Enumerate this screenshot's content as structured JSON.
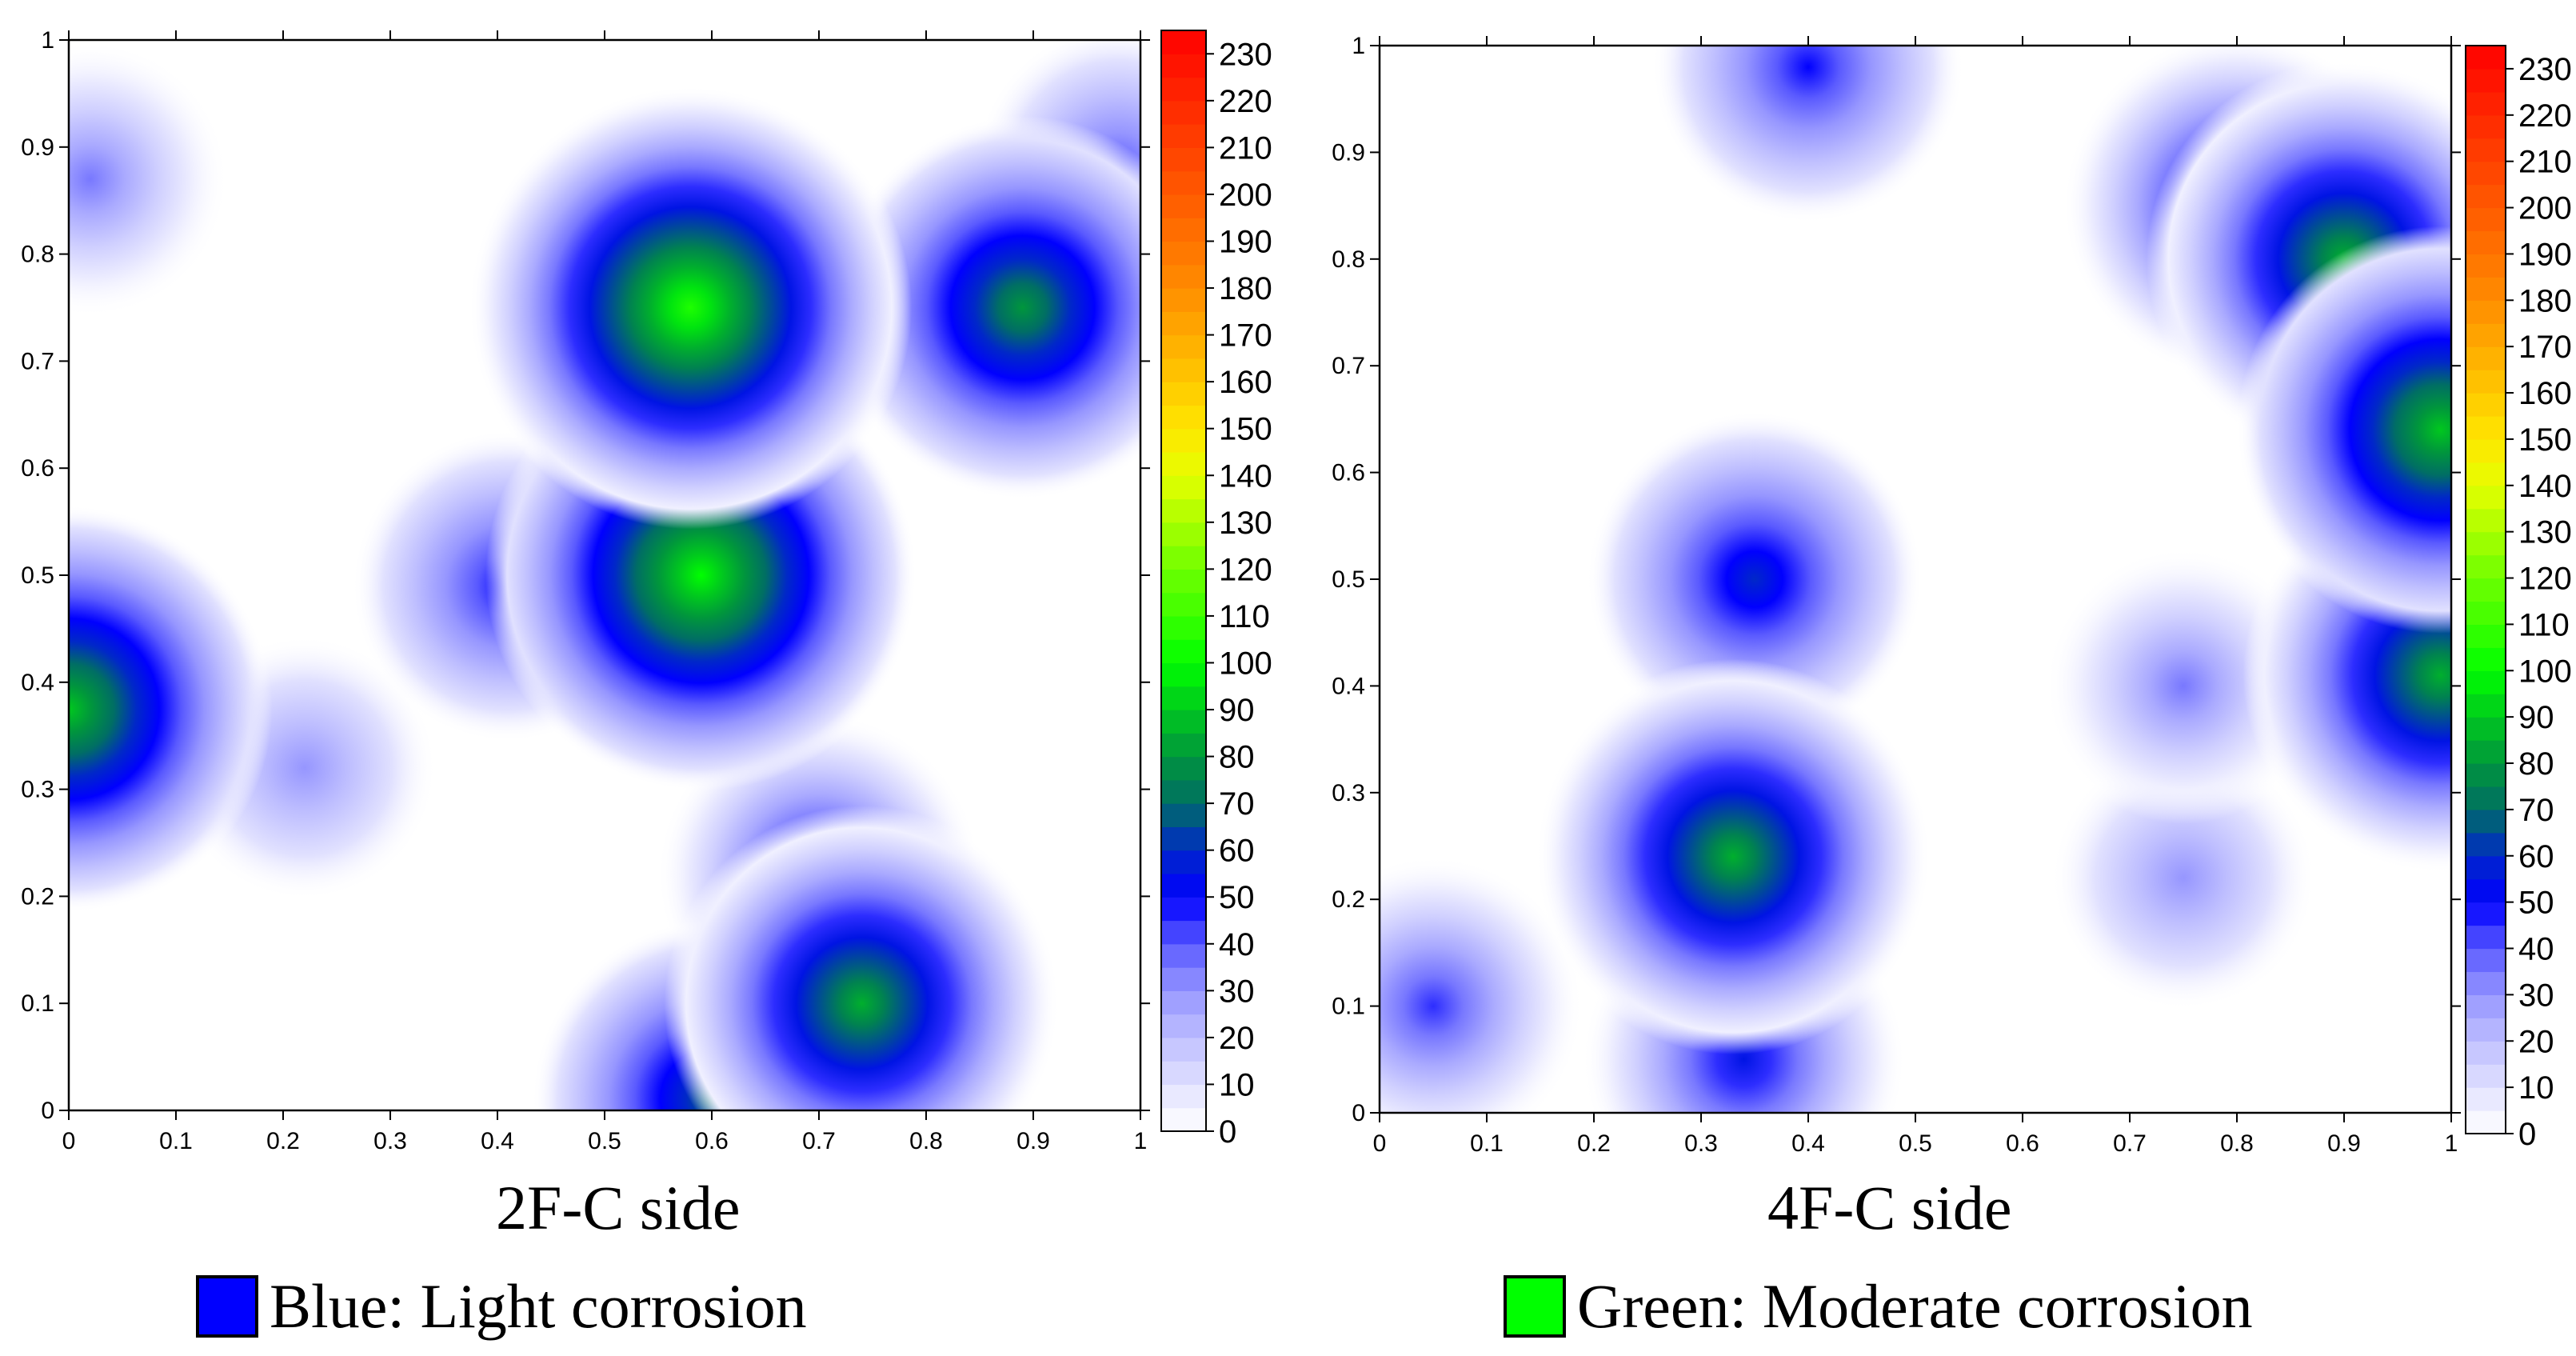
{
  "chart_data": [
    {
      "type": "heatmap",
      "title": "2F-C side",
      "xlim": [
        0,
        1
      ],
      "ylim": [
        0,
        1
      ],
      "x_ticks": [
        "0",
        "0.1",
        "0.2",
        "0.3",
        "0.4",
        "0.5",
        "0.6",
        "0.7",
        "0.8",
        "0.9",
        "1"
      ],
      "y_ticks": [
        "0",
        "0.1",
        "0.2",
        "0.3",
        "0.4",
        "0.5",
        "0.6",
        "0.7",
        "0.8",
        "0.9",
        "1"
      ],
      "colorbar": {
        "min": 0,
        "max": 235,
        "ticks": [
          "0",
          "10",
          "20",
          "30",
          "40",
          "50",
          "60",
          "70",
          "80",
          "90",
          "100",
          "110",
          "120",
          "130",
          "140",
          "150",
          "160",
          "170",
          "180",
          "190",
          "200",
          "210",
          "220",
          "230"
        ]
      },
      "hotspots": [
        {
          "x": 0.0,
          "y": 0.375,
          "value": 90
        },
        {
          "x": 0.58,
          "y": 0.75,
          "value": 105
        },
        {
          "x": 0.59,
          "y": 0.5,
          "value": 100
        },
        {
          "x": 0.89,
          "y": 0.75,
          "value": 80
        },
        {
          "x": 0.74,
          "y": 0.1,
          "value": 85
        },
        {
          "x": 0.6,
          "y": 0.01,
          "value": 70
        },
        {
          "x": 0.41,
          "y": 0.49,
          "value": 50
        },
        {
          "x": 0.7,
          "y": 0.22,
          "value": 55
        },
        {
          "x": 0.02,
          "y": 0.87,
          "value": 35
        },
        {
          "x": 0.22,
          "y": 0.32,
          "value": 30
        },
        {
          "x": 0.98,
          "y": 0.88,
          "value": 40
        }
      ]
    },
    {
      "type": "heatmap",
      "title": "4F-C side",
      "xlim": [
        0,
        1
      ],
      "ylim": [
        0,
        1
      ],
      "x_ticks": [
        "0",
        "0.1",
        "0.2",
        "0.3",
        "0.4",
        "0.5",
        "0.6",
        "0.7",
        "0.8",
        "0.9",
        "1"
      ],
      "y_ticks": [
        "0",
        "0.1",
        "0.2",
        "0.3",
        "0.4",
        "0.5",
        "0.6",
        "0.7",
        "0.8",
        "0.9",
        "1"
      ],
      "colorbar": {
        "min": 0,
        "max": 235,
        "ticks": [
          "0",
          "10",
          "20",
          "30",
          "40",
          "50",
          "60",
          "70",
          "80",
          "90",
          "100",
          "110",
          "120",
          "130",
          "140",
          "150",
          "160",
          "170",
          "180",
          "190",
          "200",
          "210",
          "220",
          "230"
        ]
      },
      "hotspots": [
        {
          "x": 0.33,
          "y": 0.24,
          "value": 85
        },
        {
          "x": 0.35,
          "y": 0.5,
          "value": 60
        },
        {
          "x": 0.34,
          "y": 0.05,
          "value": 55
        },
        {
          "x": 0.4,
          "y": 0.98,
          "value": 50
        },
        {
          "x": 0.9,
          "y": 0.8,
          "value": 85
        },
        {
          "x": 0.99,
          "y": 0.64,
          "value": 90
        },
        {
          "x": 0.99,
          "y": 0.41,
          "value": 85
        },
        {
          "x": 0.8,
          "y": 0.85,
          "value": 65
        },
        {
          "x": 0.05,
          "y": 0.1,
          "value": 45
        },
        {
          "x": 0.75,
          "y": 0.4,
          "value": 35
        },
        {
          "x": 0.75,
          "y": 0.22,
          "value": 30
        }
      ]
    }
  ],
  "legend": [
    {
      "label": "Blue: Light corrosion",
      "color": "#0000ff"
    },
    {
      "label": "Green: Moderate corrosion",
      "color": "#00ff00"
    }
  ]
}
